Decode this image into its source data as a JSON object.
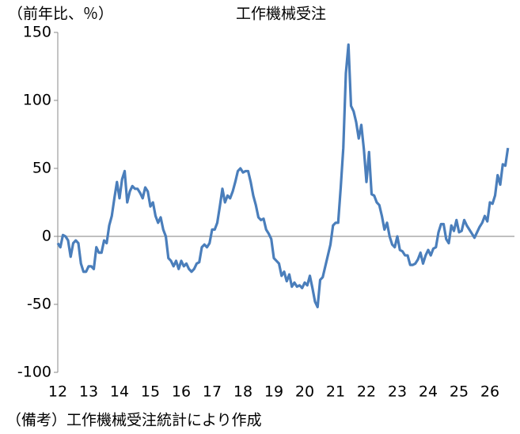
{
  "chart_data": {
    "type": "line",
    "title": "工作機械受注",
    "ylabel": "（前年比、％）",
    "note": "（備考）工作機械受注統計により作成",
    "color": "#4a7ebb",
    "ylim": [
      -100,
      150
    ],
    "yticks": [
      150,
      100,
      50,
      0,
      -50,
      -100
    ],
    "categories": [
      "12",
      null,
      null,
      null,
      null,
      null,
      null,
      null,
      null,
      null,
      null,
      null,
      "13",
      null,
      null,
      null,
      null,
      null,
      null,
      null,
      null,
      null,
      null,
      null,
      "14",
      null,
      null,
      null,
      null,
      null,
      null,
      null,
      null,
      null,
      null,
      null,
      "15",
      null,
      null,
      null,
      null,
      null,
      null,
      null,
      null,
      null,
      null,
      null,
      "16",
      null,
      null,
      null,
      null,
      null,
      null,
      null,
      null,
      null,
      null,
      null,
      "17",
      null,
      null,
      null,
      null,
      null,
      null,
      null,
      null,
      null,
      null,
      null,
      "18",
      null,
      null,
      null,
      null,
      null,
      null,
      null,
      null,
      null,
      null,
      null,
      "19",
      null,
      null,
      null,
      null,
      null,
      null,
      null,
      null,
      null,
      null,
      null,
      "20",
      null,
      null,
      null,
      null,
      null,
      null,
      null,
      null,
      null,
      null,
      null,
      "21",
      null,
      null,
      null,
      null,
      null,
      null,
      null,
      null,
      null,
      null,
      null,
      "22",
      null,
      null,
      null,
      null,
      null,
      null,
      null,
      null,
      null,
      null,
      null,
      "23",
      null,
      null,
      null,
      null,
      null,
      null,
      null,
      null,
      null,
      null,
      null,
      "24",
      null,
      null,
      null,
      null,
      null,
      null,
      null,
      null,
      null,
      null,
      null,
      "25",
      null,
      null,
      null,
      null,
      null,
      null,
      null,
      null,
      null,
      null,
      null,
      "26",
      null,
      null,
      null,
      null,
      null,
      null,
      null
    ],
    "values": [
      -5,
      -8,
      1,
      0,
      -3,
      -15,
      -5,
      -3,
      -5,
      -20,
      -26,
      -26,
      -22,
      -22,
      -24,
      -8,
      -12,
      -12,
      -3,
      -5,
      8,
      15,
      28,
      40,
      28,
      42,
      48,
      25,
      33,
      37,
      35,
      35,
      32,
      28,
      36,
      33,
      22,
      25,
      15,
      10,
      14,
      5,
      0,
      -16,
      -18,
      -22,
      -18,
      -24,
      -18,
      -22,
      -20,
      -24,
      -26,
      -24,
      -20,
      -19,
      -8,
      -6,
      -8,
      -5,
      5,
      5,
      10,
      22,
      35,
      25,
      30,
      28,
      33,
      40,
      48,
      50,
      47,
      48,
      48,
      40,
      30,
      23,
      14,
      12,
      13,
      5,
      2,
      -2,
      -16,
      -18,
      -20,
      -29,
      -26,
      -33,
      -28,
      -37,
      -34,
      -37,
      -36,
      -38,
      -34,
      -36,
      -29,
      -38,
      -48,
      -52,
      -32,
      -30,
      -22,
      -14,
      -6,
      8,
      10,
      10,
      36,
      65,
      120,
      141,
      96,
      92,
      84,
      72,
      82,
      64,
      40,
      62,
      31,
      30,
      25,
      23,
      15,
      5,
      10,
      0,
      -6,
      -8,
      0,
      -10,
      -11,
      -14,
      -14,
      -21,
      -21,
      -20,
      -17,
      -12,
      -20,
      -14,
      -10,
      -14,
      -9,
      -8,
      3,
      9,
      9,
      -2,
      -5,
      8,
      4,
      12,
      3,
      4,
      12,
      8,
      5,
      2,
      -1,
      3,
      7,
      10,
      15,
      11,
      25,
      24,
      30,
      45,
      38,
      53,
      52,
      65
    ]
  }
}
